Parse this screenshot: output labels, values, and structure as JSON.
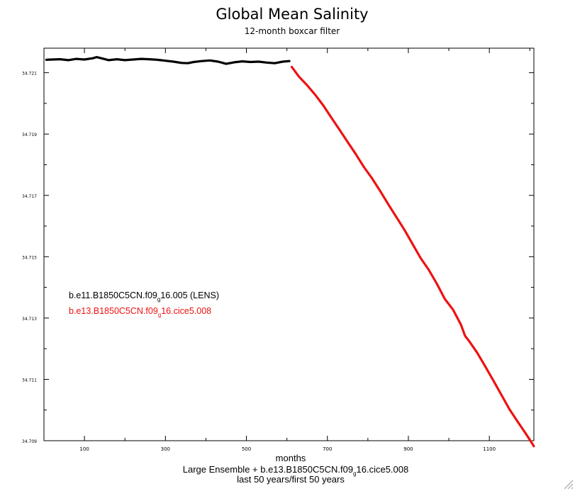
{
  "chart_data": {
    "type": "line",
    "title": "Global Mean Salinity",
    "subtitle": "12-month boxcar filter",
    "xlabel": "months",
    "ylabel": "",
    "footer_line1_main": "Large Ensemble + b.e13.B1850C5CN.f09",
    "footer_line1_sub": "g",
    "footer_line1_end": "16.cice5.008",
    "footer_line2": "last 50 years/first 50 years",
    "xlim": [
      0,
      1210
    ],
    "ylim": [
      34.709,
      34.7218
    ],
    "x_tick_labels": [
      "100",
      "300",
      "500",
      "700",
      "900",
      "1100"
    ],
    "y_tick_labels": [
      "34.721",
      "34.719",
      "34.717",
      "34.715",
      "34.713",
      "34.711",
      "34.709"
    ],
    "grid": false,
    "legend_position": "left-middle",
    "series": [
      {
        "name": "b.e11.B1850C5CN.f09_g16.005 (LENS)",
        "label_main": "b.e11.B1850C5CN.f09",
        "label_sub": "g",
        "label_end": "16.005 (LENS)",
        "color": "#000000",
        "x": [
          6,
          20,
          40,
          60,
          80,
          100,
          120,
          130,
          145,
          160,
          180,
          200,
          220,
          240,
          260,
          280,
          300,
          320,
          340,
          355,
          370,
          390,
          410,
          430,
          450,
          470,
          490,
          510,
          530,
          550,
          570,
          590,
          606
        ],
        "y": [
          34.72142,
          34.72143,
          34.72144,
          34.72141,
          34.72145,
          34.72143,
          34.72147,
          34.72151,
          34.72146,
          34.72141,
          34.72144,
          34.72141,
          34.72143,
          34.72145,
          34.72144,
          34.72142,
          34.72139,
          34.72136,
          34.72132,
          34.72131,
          34.72135,
          34.72138,
          34.7214,
          34.72136,
          34.72129,
          34.72134,
          34.72137,
          34.72135,
          34.72136,
          34.72133,
          34.72131,
          34.72136,
          34.72138
        ]
      },
      {
        "name": "b.e13.B1850C5CN.f09_g16.cice5.008",
        "label_main": "b.e13.B1850C5CN.f09",
        "label_sub": "g",
        "label_end": "16.cice5.008",
        "color": "#ee1111",
        "x": [
          612,
          630,
          650,
          670,
          690,
          710,
          730,
          750,
          770,
          790,
          810,
          830,
          850,
          870,
          890,
          910,
          930,
          950,
          970,
          990,
          1010,
          1030,
          1040,
          1050,
          1070,
          1090,
          1110,
          1130,
          1150,
          1170,
          1190,
          1210
        ],
        "y": [
          34.72119,
          34.72087,
          34.72059,
          34.72028,
          34.71993,
          34.71953,
          34.71914,
          34.71874,
          34.71835,
          34.71793,
          34.71756,
          34.71715,
          34.71672,
          34.7163,
          34.71588,
          34.71542,
          34.71496,
          34.71458,
          34.71413,
          34.71362,
          34.71328,
          34.71278,
          34.71242,
          34.71225,
          34.71187,
          34.71142,
          34.71096,
          34.71049,
          34.71002,
          34.70962,
          34.70923,
          34.70882
        ]
      }
    ]
  }
}
